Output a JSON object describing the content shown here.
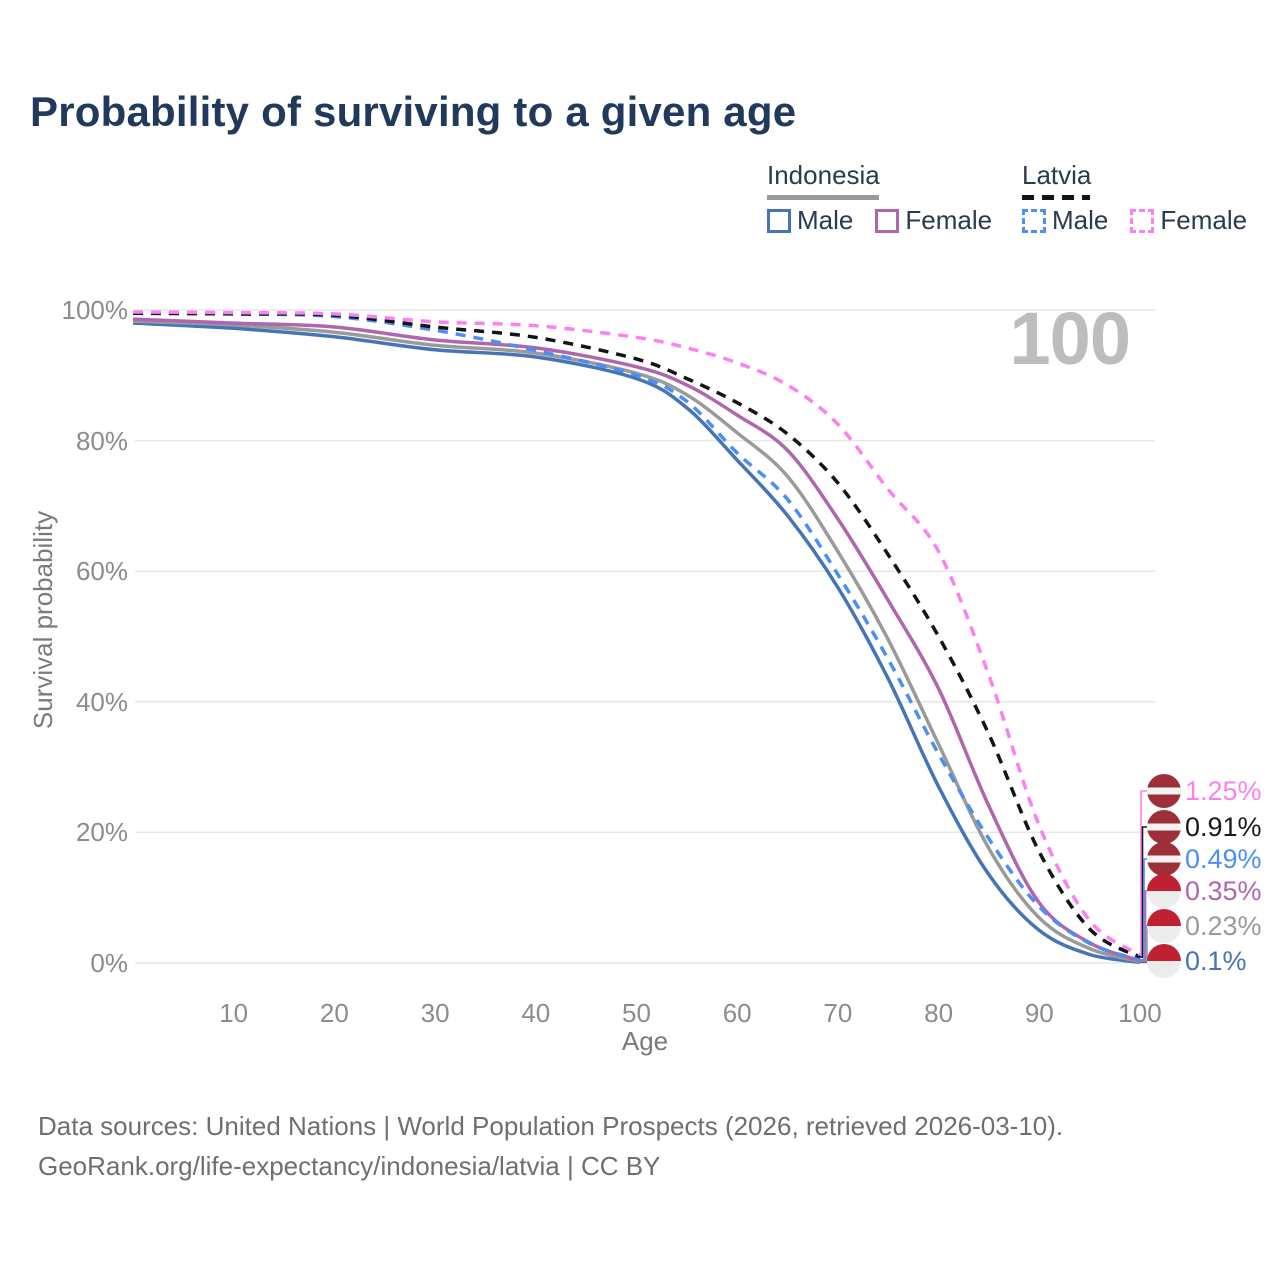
{
  "header": {
    "title": "Probability of surviving to a given age"
  },
  "watermark": {
    "text": "100"
  },
  "legend": {
    "groups": [
      {
        "label": "Indonesia",
        "line_style": "solid",
        "line_color": "#9a9a9a",
        "items": [
          {
            "label": "Male",
            "color": "#4575b5",
            "dashed": false
          },
          {
            "label": "Female",
            "color": "#b066ae",
            "dashed": false
          }
        ]
      },
      {
        "label": "Latvia",
        "line_style": "dashed",
        "line_color": "#141414",
        "items": [
          {
            "label": "Male",
            "color": "#4b8ef5",
            "dashed": true
          },
          {
            "label": "Female",
            "color": "#fc80f0",
            "dashed": true
          }
        ]
      }
    ]
  },
  "axes": {
    "xlabel": "Age",
    "ylabel": "Survival probability",
    "xticks": [
      10,
      20,
      30,
      40,
      50,
      60,
      70,
      80,
      90,
      100
    ],
    "yticks": [
      "0%",
      "20%",
      "40%",
      "60%",
      "80%",
      "100%"
    ]
  },
  "chart_data": {
    "type": "line",
    "title": "Probability of surviving to a given age",
    "xlabel": "Age",
    "ylabel": "Survival probability",
    "xlim": [
      0,
      100
    ],
    "ylim": [
      0,
      100
    ],
    "grid": "horizontal",
    "x": [
      0,
      10,
      20,
      30,
      40,
      50,
      55,
      60,
      65,
      70,
      75,
      80,
      85,
      90,
      95,
      100
    ],
    "series": [
      {
        "name": "Indonesia Male",
        "color": "#4575b5",
        "dashed": false,
        "values": [
          98.0,
          97.2,
          95.9,
          93.9,
          92.8,
          89.5,
          85.0,
          77.0,
          68.5,
          57.5,
          43.5,
          27.0,
          13.5,
          5.0,
          1.3,
          0.1
        ],
        "end_label": "0.1%"
      },
      {
        "name": "Indonesia Total",
        "color": "#9a9a9a",
        "dashed": false,
        "values": [
          98.3,
          97.7,
          96.6,
          94.6,
          93.4,
          90.3,
          87.0,
          81.2,
          74.5,
          63.0,
          49.5,
          33.5,
          17.5,
          6.9,
          2.2,
          0.23
        ],
        "end_label": "0.23%"
      },
      {
        "name": "Indonesia Female",
        "color": "#b066ae",
        "dashed": false,
        "values": [
          98.6,
          98.0,
          97.4,
          95.4,
          94.2,
          91.3,
          88.5,
          83.9,
          78.5,
          68.0,
          55.5,
          42.0,
          24.0,
          9.2,
          3.1,
          0.35
        ],
        "end_label": "0.35%"
      },
      {
        "name": "Latvia Male",
        "color": "#4b8ef5",
        "dashed": true,
        "values": [
          99.6,
          99.4,
          99.0,
          96.9,
          93.8,
          90.0,
          86.0,
          78.1,
          71.0,
          59.5,
          46.5,
          32.0,
          19.0,
          8.6,
          3.0,
          0.49
        ],
        "end_label": "0.49%"
      },
      {
        "name": "Latvia Total",
        "color": "#141414",
        "dashed": true,
        "values": [
          99.5,
          99.4,
          99.2,
          97.4,
          95.8,
          92.5,
          89.5,
          85.8,
          81.0,
          73.5,
          62.5,
          50.0,
          35.0,
          17.0,
          5.2,
          0.91
        ],
        "end_label": "0.91%"
      },
      {
        "name": "Latvia Female",
        "color": "#fc80f0",
        "dashed": true,
        "values": [
          99.7,
          99.6,
          99.4,
          98.2,
          97.6,
          95.8,
          94.2,
          91.9,
          88.5,
          82.5,
          72.5,
          63.0,
          44.0,
          21.0,
          6.5,
          1.25
        ],
        "end_label": "1.25%"
      }
    ],
    "end_labels": [
      {
        "text": "1.25%",
        "color": "#fc7ef0",
        "flag": "latvia",
        "series": "Latvia Female"
      },
      {
        "text": "0.91%",
        "color": "#1a1a1a",
        "flag": "latvia",
        "series": "Latvia Total"
      },
      {
        "text": "0.49%",
        "color": "#4b8ef5",
        "flag": "latvia",
        "series": "Latvia Male"
      },
      {
        "text": "0.35%",
        "color": "#b066ae",
        "flag": "indonesia",
        "series": "Indonesia Female"
      },
      {
        "text": "0.23%",
        "color": "#9a9a9a",
        "flag": "indonesia",
        "series": "Indonesia Total"
      },
      {
        "text": "0.1%",
        "color": "#4575b5",
        "flag": "indonesia",
        "series": "Indonesia Male"
      }
    ]
  },
  "footer": {
    "line1": "Data sources: United Nations | World Population Prospects (2026, retrieved 2026-03-10).",
    "line2": "GeoRank.org/life-expectancy/indonesia/latvia | CC BY"
  },
  "colors": {
    "title": "#21395a",
    "axis_text": "#8c8c8c",
    "gridline": "#e7e7e7",
    "watermark": "#bdbdbd",
    "latvia_flag_red": "#9d2f39",
    "indonesia_flag_red": "#bf2133"
  }
}
